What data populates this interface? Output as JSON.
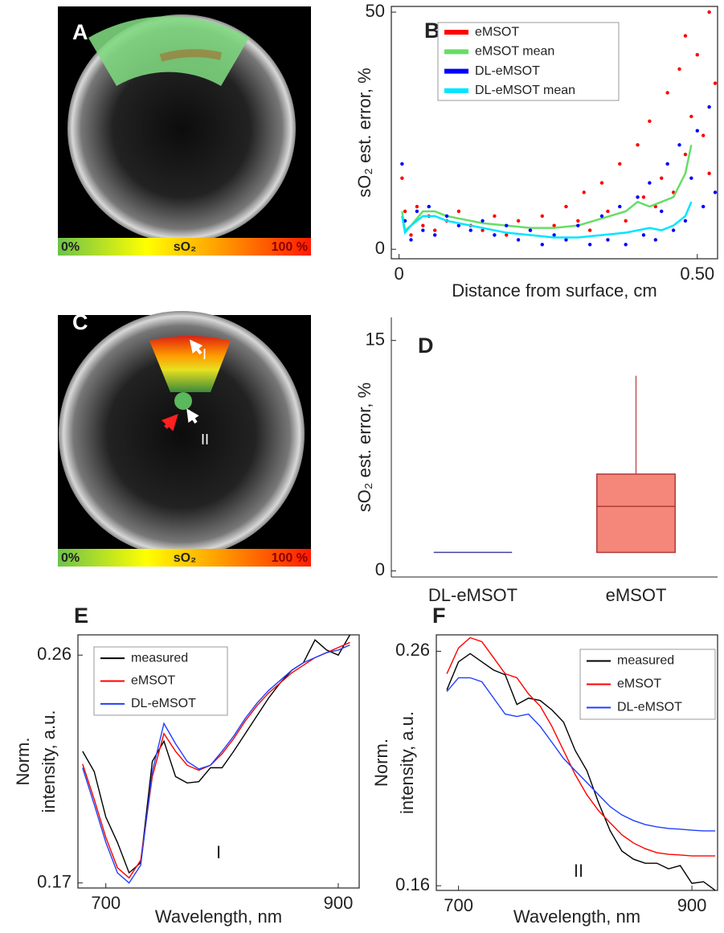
{
  "chart_data": [
    {
      "type": "image",
      "label": "A",
      "colorbar": {
        "min_label": "0%",
        "title": "sO₂",
        "max_label": "100 %"
      }
    },
    {
      "type": "scatter",
      "label": "B",
      "ylabel": "sO₂ est. error, %",
      "xlabel": "Distance from surface, cm",
      "xlim": [
        -0.013,
        0.534
      ],
      "ylim": [
        -2,
        51.2
      ],
      "xticks": [
        0,
        {
          "value": 0.5,
          "label": "0.50"
        }
      ],
      "yticks": [
        0,
        50
      ],
      "legend": "upper left",
      "series": [
        {
          "name": "eMSOT",
          "color": "#ff0000",
          "mode": "markers",
          "x": [
            0.005,
            0.01,
            0.02,
            0.03,
            0.04,
            0.05,
            0.06,
            0.08,
            0.1,
            0.12,
            0.14,
            0.16,
            0.18,
            0.2,
            0.22,
            0.24,
            0.26,
            0.28,
            0.3,
            0.31,
            0.32,
            0.34,
            0.35,
            0.37,
            0.38,
            0.4,
            0.41,
            0.42,
            0.43,
            0.44,
            0.45,
            0.46,
            0.47,
            0.48,
            0.48,
            0.49,
            0.5,
            0.51,
            0.52,
            0.52,
            0.53
          ],
          "values": [
            15,
            8,
            3,
            9,
            5,
            7,
            4,
            6,
            8,
            5,
            4,
            7,
            3,
            6,
            4,
            7,
            5,
            9,
            6,
            12,
            4,
            14,
            8,
            18,
            6,
            22,
            11,
            27,
            9,
            15,
            33,
            12,
            38,
            20,
            45,
            28,
            41,
            24,
            50,
            16,
            35
          ]
        },
        {
          "name": "eMSOT mean",
          "color": "#66dd66",
          "mode": "line",
          "x": [
            0.005,
            0.01,
            0.02,
            0.04,
            0.06,
            0.08,
            0.1,
            0.14,
            0.18,
            0.22,
            0.26,
            0.3,
            0.34,
            0.38,
            0.4,
            0.42,
            0.44,
            0.46,
            0.48,
            0.49
          ],
          "values": [
            8,
            4,
            5,
            8,
            8,
            7,
            6.5,
            5.5,
            5,
            4.5,
            4.5,
            5,
            6.5,
            8,
            10,
            9,
            10,
            11,
            16,
            22
          ]
        },
        {
          "name": "DL-eMSOT",
          "color": "#0000ff",
          "mode": "markers",
          "x": [
            0.005,
            0.01,
            0.02,
            0.03,
            0.04,
            0.05,
            0.06,
            0.08,
            0.1,
            0.12,
            0.14,
            0.16,
            0.18,
            0.2,
            0.22,
            0.24,
            0.26,
            0.28,
            0.3,
            0.32,
            0.34,
            0.35,
            0.37,
            0.38,
            0.4,
            0.41,
            0.42,
            0.43,
            0.44,
            0.45,
            0.46,
            0.47,
            0.48,
            0.49,
            0.5,
            0.51,
            0.52,
            0.53
          ],
          "values": [
            18,
            6,
            2,
            8,
            4,
            9,
            3,
            7,
            5,
            4,
            6,
            3,
            5,
            2,
            4,
            1,
            3,
            2,
            5,
            1,
            7,
            2,
            9,
            1,
            11,
            3,
            14,
            2,
            8,
            18,
            4,
            22,
            6,
            15,
            25,
            9,
            30,
            12
          ]
        },
        {
          "name": "DL-eMSOT mean",
          "color": "#00e5ff",
          "mode": "line",
          "x": [
            0.005,
            0.01,
            0.02,
            0.04,
            0.06,
            0.08,
            0.1,
            0.14,
            0.18,
            0.22,
            0.26,
            0.3,
            0.34,
            0.38,
            0.4,
            0.42,
            0.44,
            0.46,
            0.48,
            0.49
          ],
          "values": [
            7,
            3.5,
            5,
            7,
            7,
            6,
            5.5,
            4.5,
            3.5,
            3,
            2.5,
            2.5,
            3,
            3.5,
            4,
            4.5,
            4,
            5,
            7,
            10
          ]
        }
      ]
    },
    {
      "type": "image",
      "label": "C",
      "colorbar": {
        "min_label": "0%",
        "title": "sO₂",
        "max_label": "100 %"
      },
      "annotations": [
        "I",
        "II"
      ]
    },
    {
      "type": "box",
      "label": "D",
      "ylabel": "sO₂ est. error, %",
      "ylim": [
        -0.4,
        16.5
      ],
      "yticks": [
        0,
        15
      ],
      "categories": [
        "DL-eMSOT",
        "eMSOT"
      ],
      "boxes": [
        {
          "min": 1.2,
          "q1": 1.2,
          "median": 1.2,
          "q3": 1.2,
          "max": 1.2,
          "color": "#4040a0",
          "edgecolor": "#4040a0"
        },
        {
          "min": 1.2,
          "q1": 1.2,
          "median": 4.2,
          "q3": 6.3,
          "max": 12.7,
          "color": "#f4877a",
          "edgecolor": "#b03a3a"
        }
      ]
    },
    {
      "type": "line",
      "label": "E",
      "ylabel": [
        "Norm.",
        "intensity, a.u."
      ],
      "xlabel": "Wavelength, nm",
      "annotation": "I",
      "xlim": [
        676,
        918
      ],
      "ylim": [
        0.168,
        0.268
      ],
      "xticks": [
        700,
        900
      ],
      "yticks": [
        0.17,
        0.26
      ],
      "legend": "upper left",
      "x": [
        680,
        690,
        700,
        710,
        720,
        730,
        740,
        750,
        760,
        770,
        780,
        790,
        800,
        810,
        820,
        830,
        840,
        850,
        860,
        870,
        880,
        890,
        900,
        910
      ],
      "series": [
        {
          "name": "measured",
          "color": "#000000",
          "values": [
            0.222,
            0.214,
            0.196,
            0.186,
            0.174,
            0.178,
            0.218,
            0.226,
            0.212,
            0.2095,
            0.21,
            0.2155,
            0.2155,
            0.222,
            0.229,
            0.236,
            0.243,
            0.249,
            0.254,
            0.257,
            0.266,
            0.262,
            0.26,
            0.268
          ]
        },
        {
          "name": "eMSOT",
          "color": "#ff0000",
          "values": [
            0.217,
            0.203,
            0.188,
            0.176,
            0.172,
            0.179,
            0.212,
            0.229,
            0.222,
            0.2165,
            0.2145,
            0.2165,
            0.221,
            0.227,
            0.234,
            0.24,
            0.245,
            0.249,
            0.253,
            0.256,
            0.259,
            0.261,
            0.263,
            0.265
          ]
        },
        {
          "name": "DL-eMSOT",
          "color": "#1f3fff",
          "values": [
            0.2155,
            0.201,
            0.186,
            0.174,
            0.17,
            0.177,
            0.214,
            0.233,
            0.225,
            0.218,
            0.215,
            0.2165,
            0.222,
            0.228,
            0.235,
            0.241,
            0.246,
            0.25,
            0.254,
            0.257,
            0.259,
            0.261,
            0.262,
            0.264
          ]
        }
      ]
    },
    {
      "type": "line",
      "label": "F",
      "ylabel": [
        "Norm.",
        "intensity, a.u."
      ],
      "xlabel": "Wavelength, nm",
      "annotation": "II",
      "xlim": [
        681,
        922
      ],
      "ylim": [
        0.158,
        0.267
      ],
      "xticks": [
        700,
        900
      ],
      "yticks": [
        0.16,
        0.26
      ],
      "legend": "upper right",
      "x": [
        690,
        700,
        710,
        720,
        730,
        740,
        750,
        760,
        770,
        780,
        790,
        800,
        810,
        820,
        830,
        840,
        850,
        860,
        870,
        880,
        890,
        900,
        910,
        920
      ],
      "series": [
        {
          "name": "measured",
          "color": "#000000",
          "values": [
            0.2435,
            0.2555,
            0.259,
            0.2555,
            0.252,
            0.25,
            0.2373,
            0.24,
            0.239,
            0.235,
            0.2298,
            0.2177,
            0.2091,
            0.1954,
            0.1834,
            0.1748,
            0.1713,
            0.1696,
            0.1696,
            0.1672,
            0.1686,
            0.161,
            0.1617,
            0.158
          ]
        },
        {
          "name": "eMSOT",
          "color": "#ff0000",
          "values": [
            0.2504,
            0.2614,
            0.2658,
            0.2641,
            0.2573,
            0.2504,
            0.2487,
            0.2418,
            0.2366,
            0.228,
            0.2177,
            0.2074,
            0.1988,
            0.192,
            0.1868,
            0.1817,
            0.1782,
            0.1758,
            0.1741,
            0.1734,
            0.1731,
            0.1727,
            0.1727,
            0.1727
          ]
        },
        {
          "name": "DL-eMSOT",
          "color": "#1f3fff",
          "values": [
            0.2428,
            0.2487,
            0.2487,
            0.247,
            0.2401,
            0.2332,
            0.2322,
            0.2332,
            0.228,
            0.2212,
            0.2143,
            0.2091,
            0.204,
            0.1988,
            0.1937,
            0.1902,
            0.1878,
            0.1861,
            0.1851,
            0.1844,
            0.1841,
            0.1837,
            0.1834,
            0.1834
          ]
        }
      ]
    }
  ]
}
